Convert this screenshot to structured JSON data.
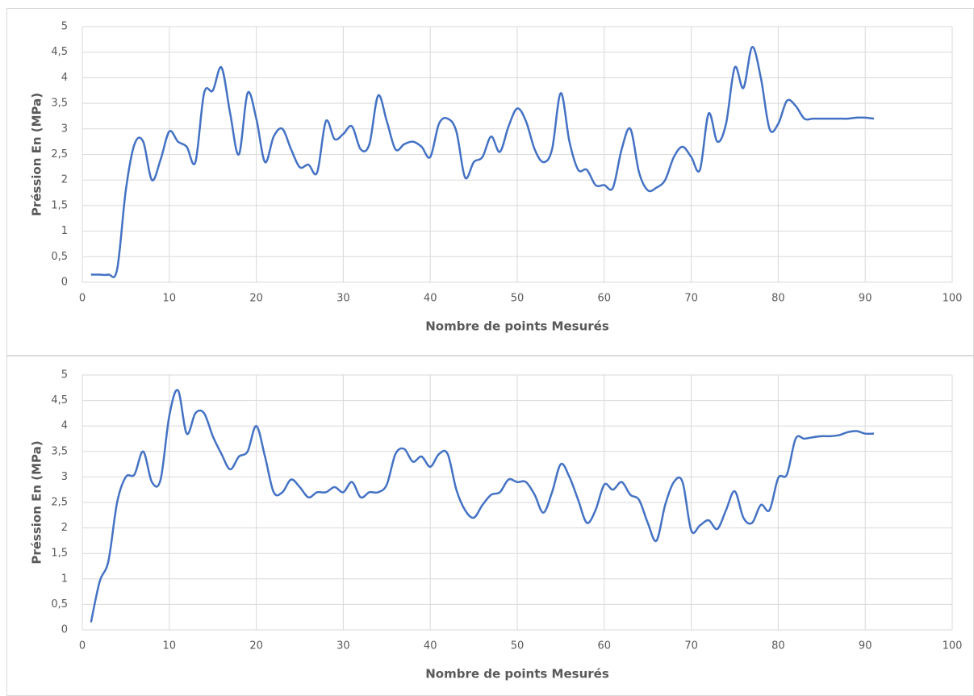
{
  "chart_data": [
    {
      "type": "line",
      "y_label": "Préssion En (MPa)",
      "x_label": "Nombre de points Mesurés",
      "color": "#4472c4",
      "grid": true,
      "xlim": [
        0,
        100
      ],
      "xticks": [
        0,
        10,
        20,
        30,
        40,
        50,
        60,
        70,
        80,
        90,
        100
      ],
      "ylim": [
        0,
        5
      ],
      "yticks": [
        0,
        {
          "value": 0.5,
          "label": "0,5"
        },
        1,
        {
          "value": 1.5,
          "label": "1,5"
        },
        2,
        {
          "value": 2.5,
          "label": "2,5"
        },
        3,
        {
          "value": 3.5,
          "label": "3,5"
        },
        4,
        {
          "value": 4.5,
          "label": "4,5"
        },
        5
      ],
      "x": [
        1,
        2,
        3,
        4,
        5,
        6,
        7,
        8,
        9,
        10,
        11,
        12,
        13,
        14,
        15,
        16,
        17,
        18,
        19,
        20,
        21,
        22,
        23,
        24,
        25,
        26,
        27,
        28,
        29,
        30,
        31,
        32,
        33,
        34,
        35,
        36,
        37,
        38,
        39,
        40,
        41,
        42,
        43,
        44,
        45,
        46,
        47,
        48,
        49,
        50,
        51,
        52,
        53,
        54,
        55,
        56,
        57,
        58,
        59,
        60,
        61,
        62,
        63,
        64,
        65,
        66,
        67,
        68,
        69,
        70,
        71,
        72,
        73,
        74,
        75,
        76,
        77,
        78,
        79,
        80,
        81,
        82,
        83,
        84,
        85,
        86,
        87,
        88,
        89,
        90,
        91
      ],
      "values": [
        0.15,
        0.15,
        0.15,
        0.25,
        1.8,
        2.7,
        2.75,
        2.0,
        2.4,
        2.95,
        2.75,
        2.65,
        2.35,
        3.7,
        3.75,
        4.2,
        3.3,
        2.5,
        3.7,
        3.2,
        2.35,
        2.85,
        3.0,
        2.6,
        2.25,
        2.3,
        2.15,
        3.15,
        2.8,
        2.9,
        3.05,
        2.6,
        2.7,
        3.65,
        3.15,
        2.6,
        2.7,
        2.75,
        2.65,
        2.45,
        3.1,
        3.2,
        2.95,
        2.05,
        2.35,
        2.45,
        2.85,
        2.55,
        3.05,
        3.4,
        3.15,
        2.6,
        2.35,
        2.6,
        3.7,
        2.75,
        2.2,
        2.2,
        1.9,
        1.9,
        1.85,
        2.6,
        3.0,
        2.15,
        1.8,
        1.85,
        2.0,
        2.45,
        2.65,
        2.45,
        2.2,
        3.3,
        2.75,
        3.1,
        4.2,
        3.8,
        4.6,
        4.0,
        3.0,
        3.1,
        3.55,
        3.45,
        3.2,
        3.2,
        3.2,
        3.2,
        3.2,
        3.2,
        3.22,
        3.22,
        3.2
      ]
    },
    {
      "type": "line",
      "y_label": "Préssion En (MPa)",
      "x_label": "Nombre de points Mesurés",
      "color": "#4472c4",
      "grid": true,
      "xlim": [
        0,
        100
      ],
      "xticks": [
        0,
        10,
        20,
        30,
        40,
        50,
        60,
        70,
        80,
        90,
        100
      ],
      "ylim": [
        0,
        5
      ],
      "yticks": [
        0,
        {
          "value": 0.5,
          "label": "0,5"
        },
        1,
        {
          "value": 1.5,
          "label": "1,5"
        },
        2,
        {
          "value": 2.5,
          "label": "2,5"
        },
        3,
        {
          "value": 3.5,
          "label": "3,5"
        },
        4,
        {
          "value": 4.5,
          "label": "4,5"
        },
        5
      ],
      "x": [
        1,
        2,
        3,
        4,
        5,
        6,
        7,
        8,
        9,
        10,
        11,
        12,
        13,
        14,
        15,
        16,
        17,
        18,
        19,
        20,
        21,
        22,
        23,
        24,
        25,
        26,
        27,
        28,
        29,
        30,
        31,
        32,
        33,
        34,
        35,
        36,
        37,
        38,
        39,
        40,
        41,
        42,
        43,
        44,
        45,
        46,
        47,
        48,
        49,
        50,
        51,
        52,
        53,
        54,
        55,
        56,
        57,
        58,
        59,
        60,
        61,
        62,
        63,
        64,
        65,
        66,
        67,
        68,
        69,
        70,
        71,
        72,
        73,
        74,
        75,
        76,
        77,
        78,
        79,
        80,
        81,
        82,
        83,
        84,
        85,
        86,
        87,
        88,
        89,
        90,
        91
      ],
      "values": [
        0.15,
        0.95,
        1.35,
        2.5,
        3.0,
        3.05,
        3.5,
        2.9,
        2.95,
        4.2,
        4.7,
        3.85,
        4.25,
        4.25,
        3.8,
        3.45,
        3.15,
        3.4,
        3.5,
        4.0,
        3.4,
        2.7,
        2.7,
        2.95,
        2.8,
        2.6,
        2.7,
        2.7,
        2.8,
        2.7,
        2.9,
        2.6,
        2.7,
        2.7,
        2.85,
        3.45,
        3.55,
        3.3,
        3.4,
        3.2,
        3.45,
        3.45,
        2.75,
        2.35,
        2.2,
        2.45,
        2.65,
        2.7,
        2.95,
        2.9,
        2.9,
        2.65,
        2.3,
        2.7,
        3.25,
        3.0,
        2.55,
        2.1,
        2.35,
        2.85,
        2.75,
        2.9,
        2.65,
        2.55,
        2.1,
        1.75,
        2.45,
        2.9,
        2.9,
        1.95,
        2.05,
        2.15,
        1.98,
        2.35,
        2.72,
        2.2,
        2.1,
        2.45,
        2.35,
        2.98,
        3.05,
        3.75,
        3.75,
        3.78,
        3.8,
        3.8,
        3.82,
        3.88,
        3.9,
        3.85,
        3.85
      ]
    }
  ]
}
